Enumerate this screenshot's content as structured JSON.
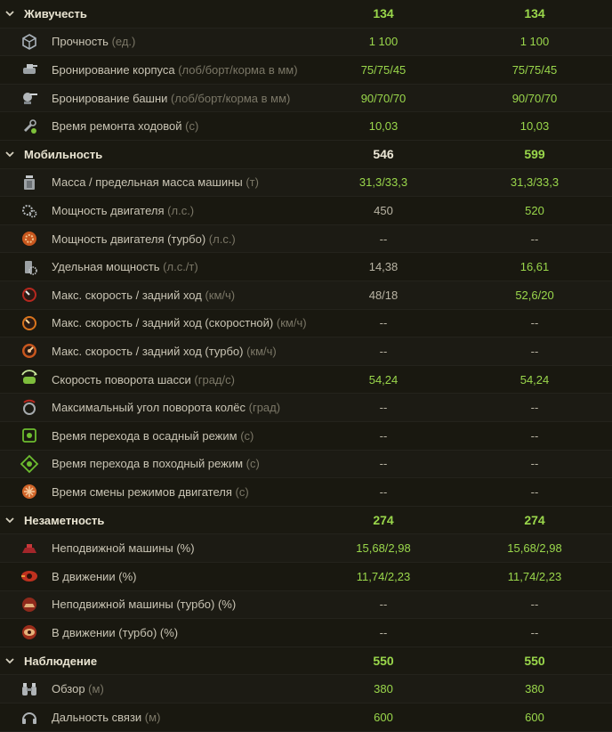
{
  "sections": [
    {
      "title": "Живучесть",
      "v1": "134",
      "v2": "134",
      "c1": "green",
      "c2": "green",
      "rows": [
        {
          "label": "Прочность",
          "unit": "(ед.)",
          "v1": "1 100",
          "v2": "1 100",
          "c1": "green",
          "c2": "green",
          "icon": "cube-icon"
        },
        {
          "label": "Бронирование корпуса",
          "unit": "(лоб/борт/корма в мм)",
          "v1": "75/75/45",
          "v2": "75/75/45",
          "c1": "green",
          "c2": "green",
          "icon": "hull-armor-icon"
        },
        {
          "label": "Бронирование башни",
          "unit": "(лоб/борт/корма в мм)",
          "v1": "90/70/70",
          "v2": "90/70/70",
          "c1": "green",
          "c2": "green",
          "icon": "turret-armor-icon"
        },
        {
          "label": "Время ремонта ходовой",
          "unit": "(с)",
          "v1": "10,03",
          "v2": "10,03",
          "c1": "green",
          "c2": "green",
          "icon": "repair-icon"
        }
      ]
    },
    {
      "title": "Мобильность",
      "v1": "546",
      "v2": "599",
      "c1": "white",
      "c2": "green",
      "rows": [
        {
          "label": "Масса / предельная масса машины",
          "unit": "(т)",
          "v1": "31,3/33,3",
          "v2": "31,3/33,3",
          "c1": "green",
          "c2": "green",
          "icon": "weight-icon"
        },
        {
          "label": "Мощность двигателя",
          "unit": "(л.с.)",
          "v1": "450",
          "v2": "520",
          "c1": "plain",
          "c2": "green",
          "icon": "engine-icon"
        },
        {
          "label": "Мощность двигателя (турбо)",
          "unit": "(л.с.)",
          "v1": "--",
          "v2": "--",
          "c1": "plain",
          "c2": "plain",
          "icon": "engine-turbo-icon"
        },
        {
          "label": "Удельная мощность",
          "unit": "(л.с./т)",
          "v1": "14,38",
          "v2": "16,61",
          "c1": "plain",
          "c2": "green",
          "icon": "specific-power-icon"
        },
        {
          "label": "Макс. скорость / задний ход",
          "unit": "(км/ч)",
          "v1": "48/18",
          "v2": "52,6/20",
          "c1": "plain",
          "c2": "green",
          "icon": "speed-icon"
        },
        {
          "label": "Макс. скорость / задний ход (скоростной)",
          "unit": "(км/ч)",
          "v1": "--",
          "v2": "--",
          "c1": "plain",
          "c2": "plain",
          "icon": "speed-fast-icon"
        },
        {
          "label": "Макс. скорость / задний ход (турбо)",
          "unit": "(км/ч)",
          "v1": "--",
          "v2": "--",
          "c1": "plain",
          "c2": "plain",
          "icon": "speed-turbo-icon"
        },
        {
          "label": "Скорость поворота шасси",
          "unit": "(град/с)",
          "v1": "54,24",
          "v2": "54,24",
          "c1": "green",
          "c2": "green",
          "icon": "traverse-icon"
        },
        {
          "label": "Максимальный угол поворота колёс",
          "unit": "(град)",
          "v1": "--",
          "v2": "--",
          "c1": "plain",
          "c2": "plain",
          "icon": "wheel-angle-icon"
        },
        {
          "label": "Время перехода в осадный режим",
          "unit": " (с)",
          "v1": "--",
          "v2": "--",
          "c1": "plain",
          "c2": "plain",
          "icon": "siege-mode-icon"
        },
        {
          "label": "Время перехода в походный режим",
          "unit": " (с)",
          "v1": "--",
          "v2": "--",
          "c1": "plain",
          "c2": "plain",
          "icon": "travel-mode-icon"
        },
        {
          "label": "Время смены режимов двигателя",
          "unit": "(с)",
          "v1": "--",
          "v2": "--",
          "c1": "plain",
          "c2": "plain",
          "icon": "engine-mode-icon"
        }
      ]
    },
    {
      "title": "Незаметность",
      "v1": "274",
      "v2": "274",
      "c1": "green",
      "c2": "green",
      "rows": [
        {
          "label": "Неподвижной машины (%)",
          "unit": "",
          "v1": "15,68/2,98",
          "v2": "15,68/2,98",
          "c1": "green",
          "c2": "green",
          "icon": "camo-still-icon"
        },
        {
          "label": "В движении (%)",
          "unit": "",
          "v1": "11,74/2,23",
          "v2": "11,74/2,23",
          "c1": "green",
          "c2": "green",
          "icon": "camo-moving-icon"
        },
        {
          "label": "Неподвижной машины (турбо) (%)",
          "unit": "",
          "v1": "--",
          "v2": "--",
          "c1": "plain",
          "c2": "plain",
          "icon": "camo-still-turbo-icon"
        },
        {
          "label": "В движении (турбо) (%)",
          "unit": "",
          "v1": "--",
          "v2": "--",
          "c1": "plain",
          "c2": "plain",
          "icon": "camo-moving-turbo-icon"
        }
      ]
    },
    {
      "title": "Наблюдение",
      "v1": "550",
      "v2": "550",
      "c1": "green",
      "c2": "green",
      "rows": [
        {
          "label": "Обзор",
          "unit": "(м)",
          "v1": "380",
          "v2": "380",
          "c1": "green",
          "c2": "green",
          "icon": "binoculars-icon"
        },
        {
          "label": "Дальность связи",
          "unit": "(м)",
          "v1": "600",
          "v2": "600",
          "c1": "green",
          "c2": "green",
          "icon": "headset-icon"
        }
      ]
    }
  ]
}
